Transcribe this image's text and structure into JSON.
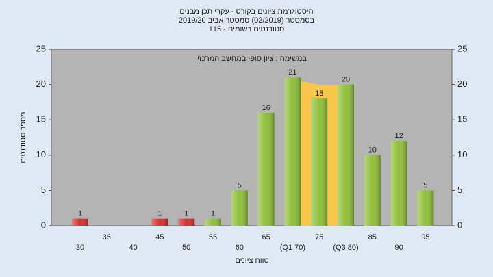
{
  "chart_data": {
    "type": "bar",
    "title": "היסטוגרמת ציונים בקורס - עקרי תכן מבנים",
    "subtitle": "בסמסטר  (02/2019)  סמסטר אביב 2019/20",
    "subtitle2": "סטודנטים רשומים - 115",
    "annotation": "במשימה : ציון סופי במחשב המרכזי",
    "x_label": "טווח ציונים",
    "y_label": "מספר סטודנטים",
    "categories": [
      "30",
      "35",
      "40",
      "45",
      "50",
      "55",
      "60",
      "65",
      "(Q1 70)",
      "75",
      "(Q3 80)",
      "85",
      "90",
      "95"
    ],
    "values": [
      1,
      null,
      null,
      1,
      1,
      1,
      5,
      16,
      21,
      18,
      20,
      10,
      12,
      5
    ],
    "colors": [
      "#d43030",
      null,
      null,
      "#d43030",
      "#d43030",
      "#8fbf3a",
      "#8fbf3a",
      "#8fbf3a",
      "#8fbf3a",
      "#8fbf3a",
      "#8fbf3a",
      "#8fbf3a",
      "#8fbf3a",
      "#8fbf3a"
    ],
    "ylim": [
      0,
      25
    ],
    "yticks": [
      0,
      5,
      10,
      15,
      20,
      25
    ],
    "y2lim": [
      0,
      25
    ],
    "y2ticks": [
      0,
      5,
      10,
      15,
      20,
      25
    ]
  }
}
